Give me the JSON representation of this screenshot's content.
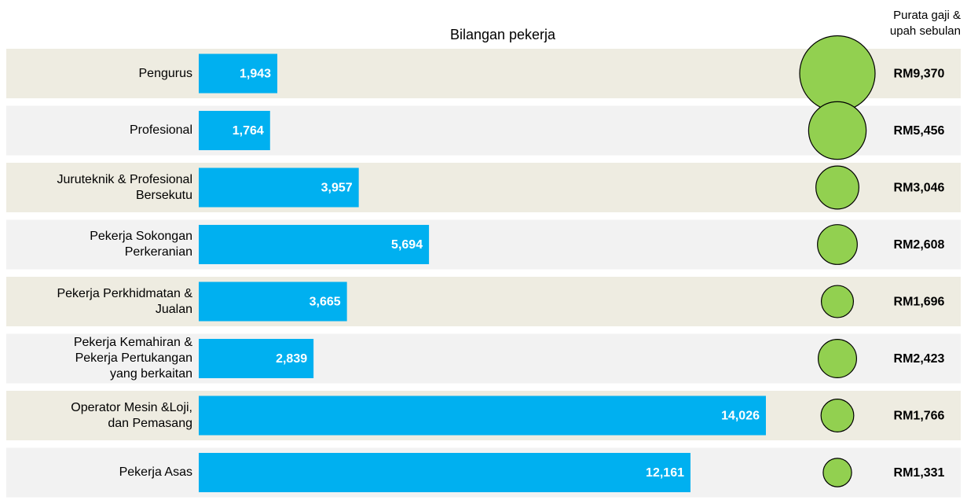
{
  "chart_data": {
    "type": "bar-bubble",
    "categories": [
      "Pengurus",
      "Profesional",
      "Juruteknik & Profesional\nBersekutu",
      "Pekerja Sokongan\nPerkeranian",
      "Pekerja Perkhidmatan &\nJualan",
      "Pekerja Kemahiran &\nPekerja Pertukangan\nyang berkaitan",
      "Operator Mesin &Loji,\ndan Pemasang",
      "Pekerja Asas"
    ],
    "series": [
      {
        "name": "Bilangan pekerja",
        "color": "#00b0f0",
        "values": [
          1943,
          1764,
          3957,
          5694,
          3665,
          2839,
          14026,
          12161
        ],
        "value_labels": [
          "1,943",
          "1,764",
          "3,957",
          "5,694",
          "3,665",
          "2,839",
          "14,026",
          "12,161"
        ]
      },
      {
        "name": "Purata gaji &\nupah sebulan",
        "color": "#92d050",
        "values": [
          9370,
          5456,
          3046,
          2608,
          1696,
          2423,
          1766,
          1331
        ],
        "value_labels": [
          "RM9,370",
          "RM5,456",
          "RM3,046",
          "RM2,608",
          "RM1,696",
          "RM2,423",
          "RM1,766",
          "RM1,331"
        ]
      }
    ]
  }
}
